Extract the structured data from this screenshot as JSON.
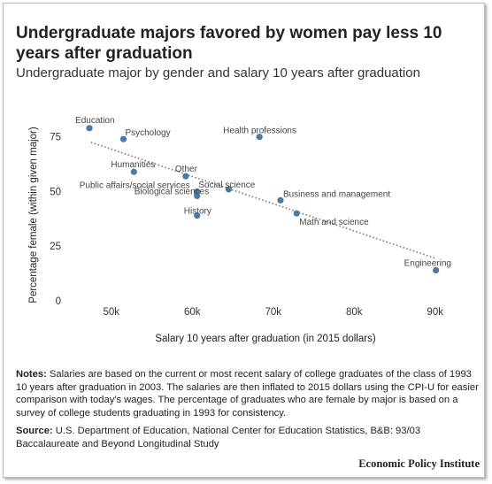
{
  "title": "Undergraduate majors favored by women pay less 10 years after graduation",
  "subtitle": "Undergraduate major by gender and salary 10 years after graduation",
  "notes": {
    "label": "Notes:",
    "text": "Salaries are based on the current or most recent salary of college graduates of the class of 1993 10 years after graduation in 2003. The salaries are then inflated to 2015 dollars using the CPI-U for easier comparison with today's wages. The percentage of graduates who are female by major is based on a survey of college students graduating in 1993 for consistency."
  },
  "source": {
    "label": "Source:",
    "text": "U.S. Department of Education, National Center for Education Statistics, B&B: 93/03 Baccalaureate and Beyond Longitudinal Study"
  },
  "brand": "Economic Policy Institute",
  "colors": {
    "point": "#4a7aa6",
    "trendline": "#777777",
    "text": "#222222"
  },
  "chart_data": {
    "type": "scatter",
    "xlabel": "Salary 10 years after graduation (in 2015 dollars)",
    "ylabel": "Percentage female (within given major)",
    "xlim": [
      45000,
      92000
    ],
    "ylim": [
      0,
      85
    ],
    "x_ticks": [
      50000,
      60000,
      70000,
      80000,
      90000
    ],
    "x_tick_labels": [
      "50k",
      "60k",
      "70k",
      "80k",
      "90k"
    ],
    "y_ticks": [
      0,
      25,
      50,
      75
    ],
    "y_tick_labels": [
      "0",
      "25",
      "50",
      "75"
    ],
    "grid": false,
    "trendline": {
      "style": "dotted",
      "from": [
        47500,
        72.5
      ],
      "to": [
        90000,
        19.5
      ]
    },
    "points": [
      {
        "label": "Education",
        "x": 47300,
        "y": 79
      },
      {
        "label": "Psychology",
        "x": 51500,
        "y": 74
      },
      {
        "label": "Health professions",
        "x": 68300,
        "y": 75
      },
      {
        "label": "Humanities",
        "x": 52800,
        "y": 59
      },
      {
        "label": "Other",
        "x": 59200,
        "y": 57
      },
      {
        "label": "Public affairs/social services",
        "x": 60600,
        "y": 50
      },
      {
        "label": "Social science",
        "x": 64500,
        "y": 51
      },
      {
        "label": "Biological sciences",
        "x": 60600,
        "y": 48
      },
      {
        "label": "History",
        "x": 60600,
        "y": 39
      },
      {
        "label": "Business and management",
        "x": 70900,
        "y": 46
      },
      {
        "label": "Math and science",
        "x": 72900,
        "y": 40
      },
      {
        "label": "Engineering",
        "x": 90100,
        "y": 14
      }
    ]
  }
}
